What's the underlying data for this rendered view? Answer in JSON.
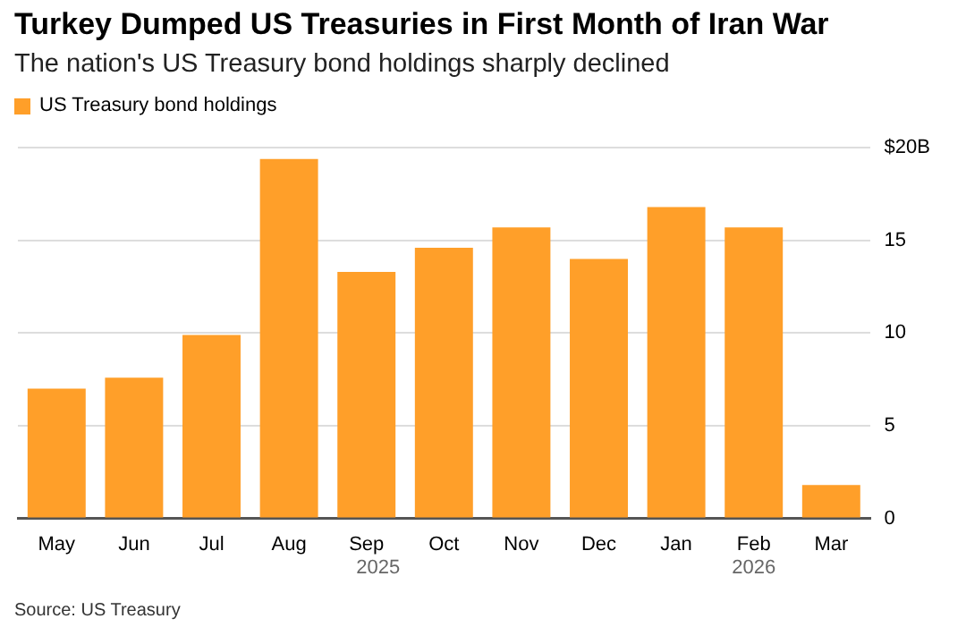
{
  "chart_data": {
    "type": "bar",
    "title": "Turkey Dumped US Treasuries in First Month of Iran War",
    "subtitle": "The nation's US Treasury bond holdings sharply declined",
    "categories": [
      "May",
      "Jun",
      "Jul",
      "Aug",
      "Sep",
      "Oct",
      "Nov",
      "Dec",
      "Jan",
      "Feb",
      "Mar"
    ],
    "series": [
      {
        "name": "US Treasury bond holdings",
        "color": "#ff9f29",
        "values": [
          7.0,
          7.6,
          9.9,
          19.4,
          13.3,
          14.6,
          15.7,
          14.0,
          16.8,
          15.7,
          1.8
        ]
      }
    ],
    "ylim": [
      0,
      20
    ],
    "yticks": [
      0,
      5,
      10,
      15,
      {
        "value": 20,
        "label": "$20B"
      }
    ],
    "grid": "y",
    "legend": "top left",
    "annotations": [
      "2025",
      "2026",
      "Source: US Treasury"
    ]
  }
}
